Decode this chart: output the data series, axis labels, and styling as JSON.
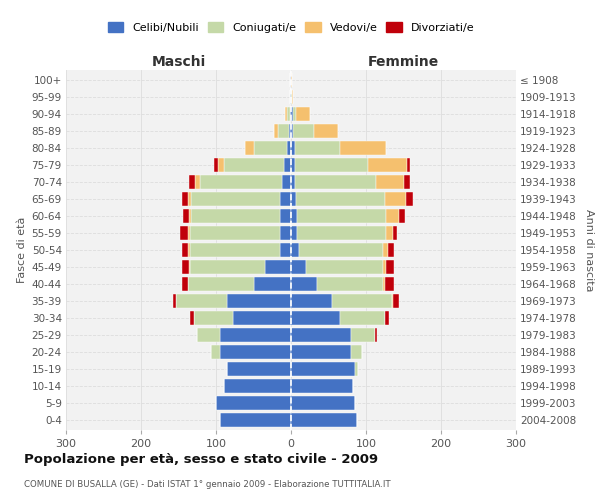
{
  "age_groups": [
    "0-4",
    "5-9",
    "10-14",
    "15-19",
    "20-24",
    "25-29",
    "30-34",
    "35-39",
    "40-44",
    "45-49",
    "50-54",
    "55-59",
    "60-64",
    "65-69",
    "70-74",
    "75-79",
    "80-84",
    "85-89",
    "90-94",
    "95-99",
    "100+"
  ],
  "birth_years": [
    "2004-2008",
    "1999-2003",
    "1994-1998",
    "1989-1993",
    "1984-1988",
    "1979-1983",
    "1974-1978",
    "1969-1973",
    "1964-1968",
    "1959-1963",
    "1954-1958",
    "1949-1953",
    "1944-1948",
    "1939-1943",
    "1934-1938",
    "1929-1933",
    "1924-1928",
    "1919-1923",
    "1914-1918",
    "1909-1913",
    "≤ 1908"
  ],
  "colors": {
    "celibe": "#4472C4",
    "coniugato": "#C5D9A8",
    "vedovo": "#F5C06E",
    "divorziato": "#C0000A"
  },
  "maschi": {
    "celibe": [
      95,
      100,
      90,
      85,
      95,
      95,
      78,
      85,
      50,
      35,
      15,
      15,
      15,
      15,
      12,
      10,
      5,
      3,
      2,
      1,
      1
    ],
    "coniugato": [
      0,
      0,
      0,
      0,
      12,
      30,
      52,
      68,
      88,
      100,
      120,
      120,
      118,
      118,
      110,
      80,
      45,
      15,
      3,
      0,
      0
    ],
    "vedovo": [
      0,
      0,
      0,
      0,
      0,
      0,
      0,
      0,
      0,
      1,
      2,
      3,
      3,
      4,
      6,
      8,
      12,
      5,
      3,
      0,
      0
    ],
    "divorziato": [
      0,
      0,
      0,
      0,
      0,
      0,
      5,
      5,
      8,
      10,
      8,
      10,
      8,
      8,
      8,
      5,
      0,
      0,
      0,
      0,
      0
    ]
  },
  "femmine": {
    "nubile": [
      88,
      85,
      82,
      85,
      80,
      80,
      65,
      55,
      35,
      20,
      10,
      8,
      8,
      7,
      5,
      5,
      5,
      3,
      2,
      0,
      0
    ],
    "coniugata": [
      0,
      0,
      0,
      4,
      14,
      32,
      60,
      80,
      88,
      103,
      112,
      118,
      118,
      118,
      108,
      97,
      60,
      28,
      5,
      1,
      0
    ],
    "vedova": [
      0,
      0,
      0,
      0,
      0,
      0,
      0,
      1,
      2,
      4,
      7,
      10,
      18,
      28,
      38,
      52,
      62,
      32,
      18,
      1,
      1
    ],
    "divorziata": [
      0,
      0,
      0,
      0,
      1,
      3,
      5,
      8,
      12,
      10,
      8,
      5,
      8,
      10,
      7,
      5,
      0,
      0,
      0,
      0,
      0
    ]
  },
  "title": "Popolazione per età, sesso e stato civile - 2009",
  "subtitle": "COMUNE DI BUSALLA (GE) - Dati ISTAT 1° gennaio 2009 - Elaborazione TUTTITALIA.IT",
  "xlabel_left": "Maschi",
  "xlabel_right": "Femmine",
  "ylabel_left": "Fasce di età",
  "ylabel_right": "Anni di nascita",
  "xlim": 300,
  "background_color": "#FFFFFF",
  "plot_bg_color": "#F2F2F2",
  "grid_color": "#DDDDDD",
  "legend_labels": [
    "Celibi/Nubili",
    "Coniugati/e",
    "Vedovi/e",
    "Divorziati/e"
  ]
}
